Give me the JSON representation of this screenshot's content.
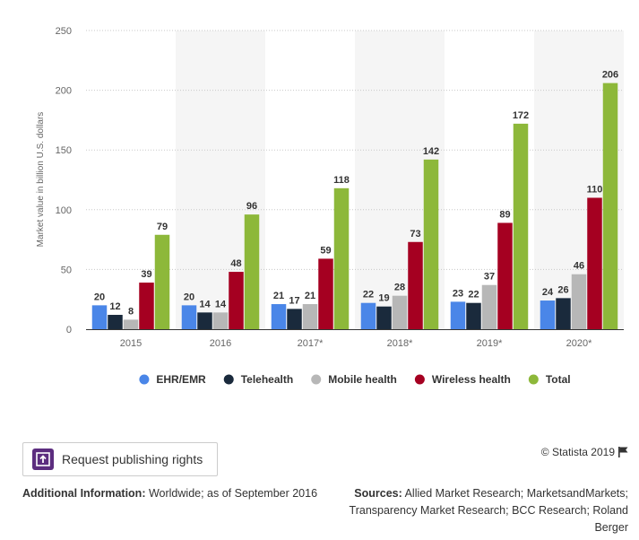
{
  "chart_data": {
    "type": "bar",
    "categories": [
      "2015",
      "2016",
      "2017*",
      "2018*",
      "2019*",
      "2020*"
    ],
    "series": [
      {
        "name": "EHR/EMR",
        "color": "#4a86e8",
        "values": [
          20,
          20,
          21,
          22,
          23,
          24
        ]
      },
      {
        "name": "Telehealth",
        "color": "#1a2a3c",
        "values": [
          12,
          14,
          17,
          19,
          22,
          26
        ]
      },
      {
        "name": "Mobile health",
        "color": "#b7b7b7",
        "values": [
          8,
          14,
          21,
          28,
          37,
          46
        ]
      },
      {
        "name": "Wireless health",
        "color": "#a50021",
        "values": [
          39,
          48,
          59,
          73,
          89,
          110
        ]
      },
      {
        "name": "Total",
        "color": "#8db83a",
        "values": [
          79,
          96,
          118,
          142,
          172,
          206
        ]
      }
    ],
    "ylabel": "Market value in billion U.S. dollars",
    "xlabel": "",
    "ylim": [
      0,
      250
    ],
    "yticks": [
      0,
      50,
      100,
      150,
      200,
      250
    ],
    "grid": true,
    "legend_position": "bottom"
  },
  "footer": {
    "rights_button_label": "Request publishing rights",
    "copyright": "© Statista 2019",
    "additional_info_label": "Additional Information:",
    "additional_info_text": "Worldwide; as of September 2016",
    "sources_label": "Sources:",
    "sources_text": "Allied Market Research; MarketsandMarkets; Transparency Market Research; BCC Research; Roland Berger"
  },
  "colors": {
    "band": "#f5f5f5",
    "grid": "#c8c8c8",
    "axis": "#333333",
    "button_icon": "#5c2d7f"
  }
}
